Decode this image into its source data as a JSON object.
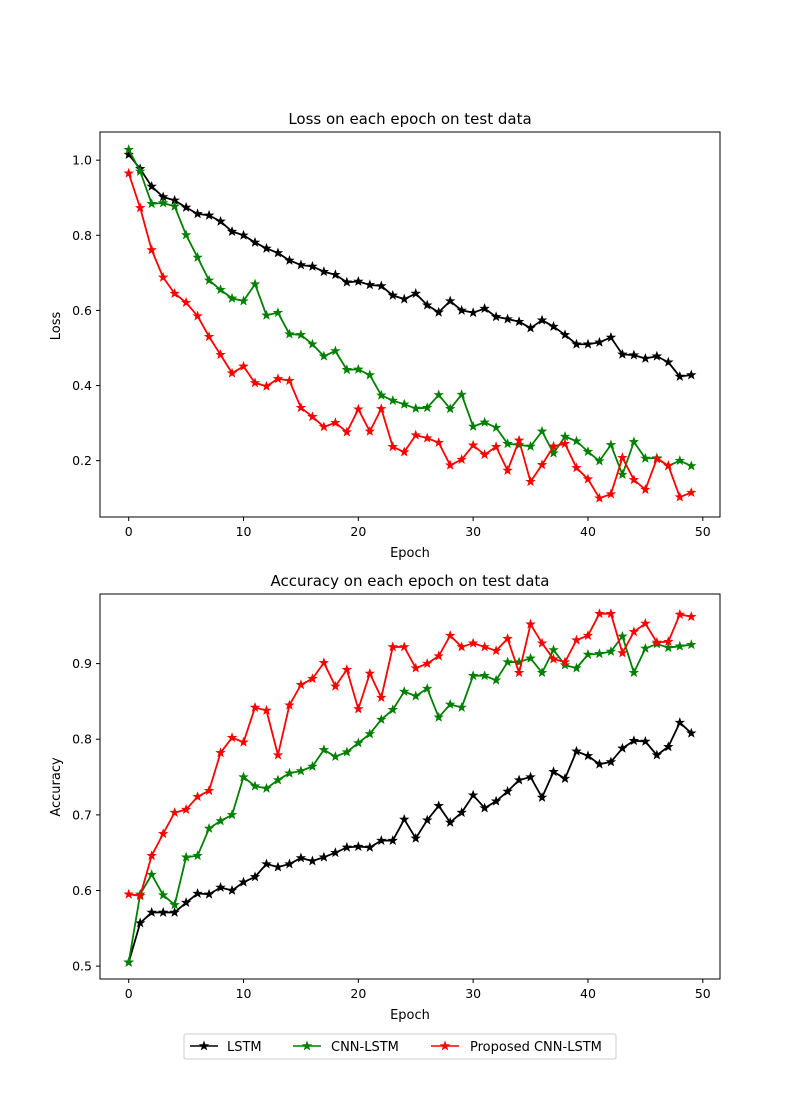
{
  "chart_data": [
    {
      "type": "line",
      "title": "Loss on each epoch on test data",
      "xlabel": "Epoch",
      "ylabel": "Loss",
      "xlim": [
        -2.5,
        51.5
      ],
      "ylim": [
        0.05,
        1.075
      ],
      "xticks": [
        0,
        10,
        20,
        30,
        40,
        50
      ],
      "yticks": [
        0.2,
        0.4,
        0.6,
        0.8,
        1.0
      ],
      "ytick_labels": [
        "0.2",
        "0.4",
        "0.6",
        "0.8",
        "1.0"
      ],
      "x": [
        0,
        1,
        2,
        3,
        4,
        5,
        6,
        7,
        8,
        9,
        10,
        11,
        12,
        13,
        14,
        15,
        16,
        17,
        18,
        19,
        20,
        21,
        22,
        23,
        24,
        25,
        26,
        27,
        28,
        29,
        30,
        31,
        32,
        33,
        34,
        35,
        36,
        37,
        38,
        39,
        40,
        41,
        42,
        43,
        44,
        45,
        46,
        47,
        48,
        49
      ],
      "series": [
        {
          "name": "LSTM",
          "color": "#000000",
          "values": [
            1.015,
            0.977,
            0.93,
            0.902,
            0.893,
            0.874,
            0.857,
            0.853,
            0.837,
            0.81,
            0.8,
            0.781,
            0.765,
            0.753,
            0.733,
            0.721,
            0.717,
            0.703,
            0.695,
            0.675,
            0.677,
            0.668,
            0.665,
            0.64,
            0.63,
            0.645,
            0.614,
            0.595,
            0.625,
            0.6,
            0.594,
            0.605,
            0.583,
            0.577,
            0.57,
            0.553,
            0.574,
            0.557,
            0.535,
            0.51,
            0.51,
            0.515,
            0.528,
            0.483,
            0.481,
            0.472,
            0.478,
            0.462,
            0.424,
            0.428
          ]
        },
        {
          "name": "CNN-LSTM",
          "color": "#008000",
          "values": [
            1.028,
            0.97,
            0.884,
            0.886,
            0.877,
            0.801,
            0.741,
            0.68,
            0.655,
            0.632,
            0.625,
            0.67,
            0.587,
            0.594,
            0.537,
            0.535,
            0.51,
            0.478,
            0.492,
            0.442,
            0.443,
            0.428,
            0.374,
            0.36,
            0.35,
            0.339,
            0.341,
            0.375,
            0.338,
            0.376,
            0.291,
            0.302,
            0.288,
            0.245,
            0.242,
            0.238,
            0.278,
            0.22,
            0.264,
            0.252,
            0.224,
            0.199,
            0.242,
            0.163,
            0.25,
            0.206,
            0.207,
            0.186,
            0.2,
            0.186
          ]
        },
        {
          "name": "Proposed CNN-LSTM",
          "color": "#ff0000",
          "values": [
            0.965,
            0.873,
            0.761,
            0.688,
            0.645,
            0.621,
            0.585,
            0.53,
            0.482,
            0.433,
            0.451,
            0.407,
            0.398,
            0.418,
            0.413,
            0.341,
            0.317,
            0.29,
            0.301,
            0.276,
            0.337,
            0.278,
            0.338,
            0.237,
            0.223,
            0.268,
            0.26,
            0.248,
            0.188,
            0.203,
            0.241,
            0.216,
            0.237,
            0.174,
            0.254,
            0.144,
            0.189,
            0.238,
            0.245,
            0.181,
            0.151,
            0.1,
            0.111,
            0.208,
            0.149,
            0.123,
            0.205,
            0.187,
            0.103,
            0.115
          ]
        }
      ]
    },
    {
      "type": "line",
      "title": "Accuracy on each epoch on test data",
      "xlabel": "Epoch",
      "ylabel": "Accuracy",
      "xlim": [
        -2.5,
        51.5
      ],
      "ylim": [
        0.483,
        0.992
      ],
      "xticks": [
        0,
        10,
        20,
        30,
        40,
        50
      ],
      "yticks": [
        0.5,
        0.6,
        0.7,
        0.8,
        0.9
      ],
      "ytick_labels": [
        "0.5",
        "0.6",
        "0.7",
        "0.8",
        "0.9"
      ],
      "x": [
        0,
        1,
        2,
        3,
        4,
        5,
        6,
        7,
        8,
        9,
        10,
        11,
        12,
        13,
        14,
        15,
        16,
        17,
        18,
        19,
        20,
        21,
        22,
        23,
        24,
        25,
        26,
        27,
        28,
        29,
        30,
        31,
        32,
        33,
        34,
        35,
        36,
        37,
        38,
        39,
        40,
        41,
        42,
        43,
        44,
        45,
        46,
        47,
        48,
        49
      ],
      "series": [
        {
          "name": "LSTM",
          "color": "#000000",
          "values": [
            0.505,
            0.557,
            0.571,
            0.571,
            0.571,
            0.584,
            0.596,
            0.595,
            0.604,
            0.6,
            0.611,
            0.618,
            0.635,
            0.631,
            0.635,
            0.643,
            0.639,
            0.644,
            0.65,
            0.657,
            0.658,
            0.657,
            0.666,
            0.666,
            0.694,
            0.669,
            0.693,
            0.712,
            0.69,
            0.703,
            0.726,
            0.709,
            0.718,
            0.731,
            0.746,
            0.75,
            0.723,
            0.757,
            0.748,
            0.784,
            0.778,
            0.767,
            0.77,
            0.788,
            0.798,
            0.797,
            0.779,
            0.79,
            0.822,
            0.808
          ]
        },
        {
          "name": "CNN-LSTM",
          "color": "#008000",
          "values": [
            0.505,
            0.595,
            0.621,
            0.594,
            0.581,
            0.644,
            0.646,
            0.682,
            0.692,
            0.7,
            0.75,
            0.738,
            0.735,
            0.746,
            0.755,
            0.758,
            0.764,
            0.786,
            0.777,
            0.783,
            0.795,
            0.807,
            0.826,
            0.839,
            0.863,
            0.857,
            0.867,
            0.829,
            0.846,
            0.842,
            0.884,
            0.884,
            0.878,
            0.902,
            0.902,
            0.907,
            0.888,
            0.918,
            0.898,
            0.894,
            0.912,
            0.913,
            0.916,
            0.936,
            0.888,
            0.92,
            0.926,
            0.921,
            0.923,
            0.925
          ]
        },
        {
          "name": "Proposed CNN-LSTM",
          "color": "#ff0000",
          "values": [
            0.595,
            0.593,
            0.646,
            0.675,
            0.703,
            0.707,
            0.724,
            0.732,
            0.782,
            0.802,
            0.796,
            0.842,
            0.838,
            0.779,
            0.845,
            0.872,
            0.88,
            0.901,
            0.87,
            0.892,
            0.84,
            0.887,
            0.855,
            0.922,
            0.922,
            0.894,
            0.9,
            0.91,
            0.937,
            0.922,
            0.927,
            0.922,
            0.917,
            0.933,
            0.888,
            0.952,
            0.927,
            0.906,
            0.902,
            0.931,
            0.937,
            0.966,
            0.966,
            0.914,
            0.942,
            0.953,
            0.928,
            0.929,
            0.965,
            0.962
          ]
        }
      ]
    }
  ],
  "legend": {
    "placement": "bottom-center",
    "entries": [
      {
        "label": "LSTM",
        "color": "#000000"
      },
      {
        "label": "CNN-LSTM",
        "color": "#008000"
      },
      {
        "label": "Proposed CNN-LSTM",
        "color": "#ff0000"
      }
    ]
  }
}
